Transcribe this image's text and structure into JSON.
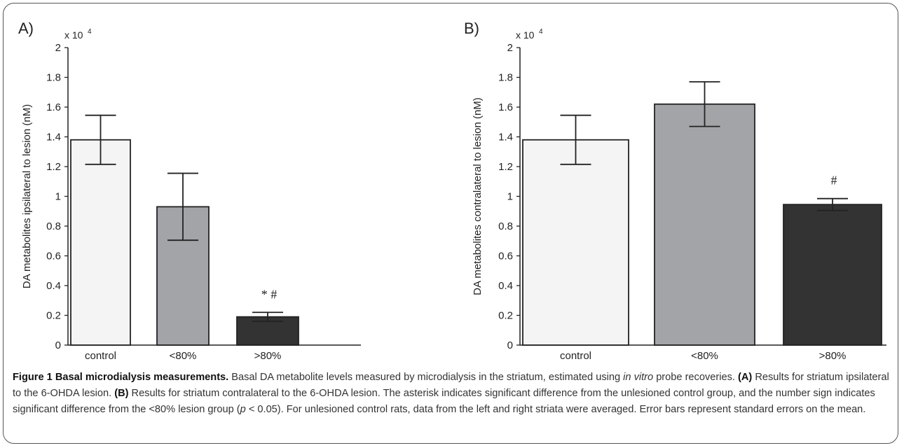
{
  "chart_data": [
    {
      "panel": "A)",
      "type": "bar",
      "categories": [
        "control",
        "<80%",
        ">80%"
      ],
      "values": [
        1.38,
        0.93,
        0.19
      ],
      "errors": [
        0.165,
        0.225,
        0.03
      ],
      "colors": [
        "#f4f4f4",
        "#a3a4a8",
        "#333333"
      ],
      "ylabel": "DA metabolites ipsilateral to lesion (nM)",
      "scale_base": "x 10",
      "scale_exp": "4",
      "ylim": [
        0,
        2
      ],
      "yticks": [
        "0",
        "0.2",
        "0.4",
        "0.6",
        "0.8",
        "1",
        "1.2",
        "1.4",
        "1.6",
        "1.8",
        "2"
      ],
      "annotations": [
        "",
        "",
        "* #"
      ]
    },
    {
      "panel": "B)",
      "type": "bar",
      "categories": [
        "control",
        "<80%",
        ">80%"
      ],
      "values": [
        1.38,
        1.62,
        0.945
      ],
      "errors": [
        0.165,
        0.15,
        0.04
      ],
      "colors": [
        "#f4f4f4",
        "#a3a4a8",
        "#333333"
      ],
      "ylabel": "DA metabolites contralateral to lesion (nM)",
      "scale_base": "x 10",
      "scale_exp": "4",
      "ylim": [
        0,
        2
      ],
      "yticks": [
        "0",
        "0.2",
        "0.4",
        "0.6",
        "0.8",
        "1",
        "1.2",
        "1.4",
        "1.6",
        "1.8",
        "2"
      ],
      "annotations": [
        "",
        "",
        "#"
      ]
    }
  ],
  "caption": {
    "title": "Figure 1 Basal microdialysis measurements.",
    "part1": " Basal DA metabolite levels measured by microdialysis in the striatum, estimated using ",
    "italic1": "in vitro",
    "part2": " probe recoveries. ",
    "bold_a": "(A)",
    "part3": " Results for striatum ipsilateral to the 6-OHDA lesion. ",
    "bold_b": "(B)",
    "part4": " Results for striatum contralateral to the 6-OHDA lesion. The asterisk indicates significant difference from the unlesioned control group, and the number sign indicates significant difference from the <80% lesion group (",
    "italic_p": "p",
    "part5": " < 0.05). For unlesioned control rats, data from the left and right striata were averaged. Error bars represent standard errors on the mean."
  }
}
